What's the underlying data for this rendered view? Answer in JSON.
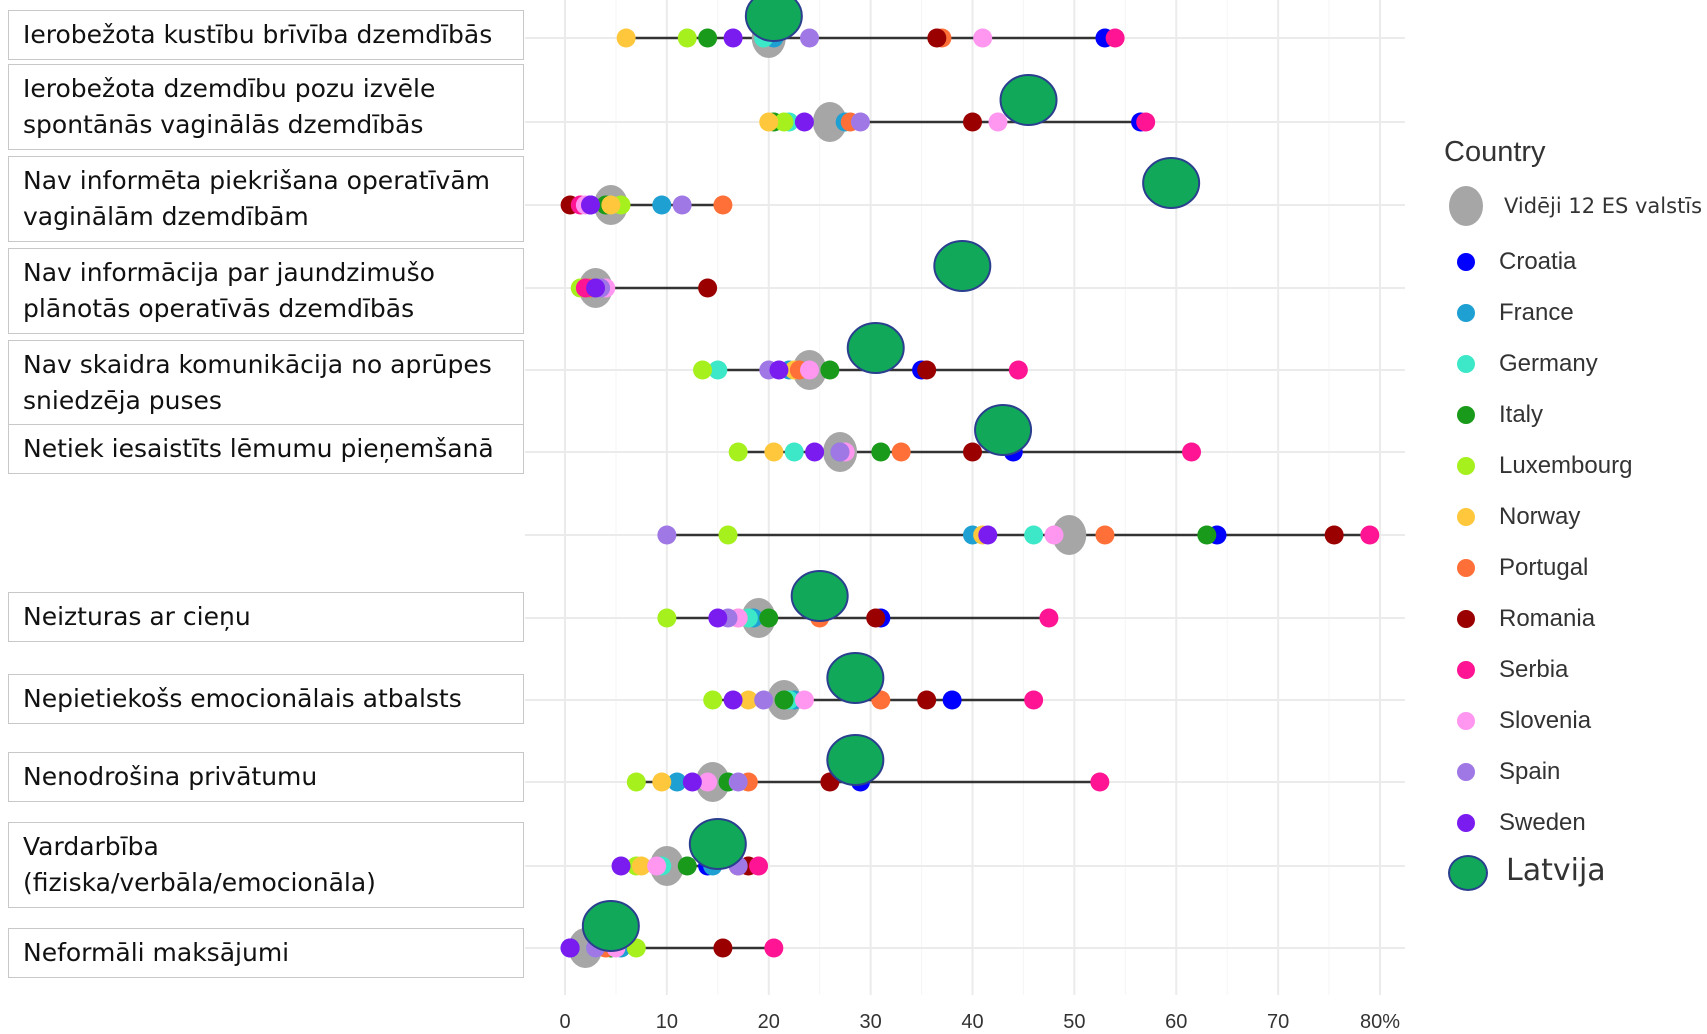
{
  "chart_data": {
    "type": "scatter",
    "xlabel": "",
    "ylabel": "",
    "xlim": [
      0,
      80
    ],
    "xticks": [
      "0",
      "10",
      "20",
      "30",
      "40",
      "50",
      "60",
      "70",
      "80%"
    ],
    "grid": true,
    "legend": {
      "title": "Country",
      "placement": "right",
      "entries": [
        {
          "name": "Vidēji 12 ES valstīs",
          "color": "#a6a6a6"
        },
        {
          "name": "Croatia",
          "color": "#0000ff"
        },
        {
          "name": "France",
          "color": "#1ea0d2"
        },
        {
          "name": "Germany",
          "color": "#3de8c8"
        },
        {
          "name": "Italy",
          "color": "#1a9a1a"
        },
        {
          "name": "Luxembourg",
          "color": "#a6f01e"
        },
        {
          "name": "Norway",
          "color": "#ffc83c"
        },
        {
          "name": "Portugal",
          "color": "#ff7038"
        },
        {
          "name": "Romania",
          "color": "#9b0000"
        },
        {
          "name": "Serbia",
          "color": "#ff1493"
        },
        {
          "name": "Slovenia",
          "color": "#ff96f0"
        },
        {
          "name": "Spain",
          "color": "#a078e6"
        },
        {
          "name": "Sweden",
          "color": "#7a1cf0"
        },
        {
          "name": "Latvija",
          "color": "#12a85a"
        }
      ]
    },
    "categories": [
      "Ierobežota kustību brīvība dzemdībās",
      "Ierobežota dzemdību pozu izvēle spontānās vaginālās dzemdībās",
      "Nav informēta piekrišana operatīvām vaginālām dzemdībām",
      "Nav informācija par jaundzimušo plānotās operatīvās dzemdībās",
      "Nav skaidra komunikācija no aprūpes sniedzēja puses",
      "Netiek iesaistīts lēmumu pieņemšanā",
      "",
      "Neizturas ar cieņu",
      "Nepietiekošs emocionālais atbalsts",
      "Nenodrošina privātumu",
      "Vardarbība (fiziska/verbāla/emocionāla)",
      "Neformāli maksājumi"
    ],
    "series": [
      {
        "name": "Vidēji 12 ES valstīs",
        "values": [
          20,
          26,
          4.5,
          3,
          24,
          27,
          49.5,
          19,
          21.5,
          14.5,
          10,
          2
        ]
      },
      {
        "name": "Croatia",
        "values": [
          53,
          56.5,
          2.5,
          2.5,
          35,
          44,
          64,
          31,
          38,
          29,
          14,
          0.5
        ]
      },
      {
        "name": "France",
        "values": [
          20.5,
          27.5,
          9.5,
          3,
          22,
          27,
          40,
          18.5,
          22.5,
          11,
          14.5,
          5.5
        ]
      },
      {
        "name": "Germany",
        "values": [
          19.5,
          22,
          4.5,
          2.5,
          15,
          22.5,
          46,
          18,
          22,
          16,
          9.5,
          3
        ]
      },
      {
        "name": "Italy",
        "values": [
          14,
          20.5,
          4,
          2,
          26,
          31,
          63,
          20,
          21.5,
          16,
          12,
          4.5
        ]
      },
      {
        "name": "Luxembourg",
        "values": [
          12,
          21.5,
          5.5,
          1.5,
          13.5,
          17,
          16,
          10,
          14.5,
          7,
          7,
          7
        ]
      },
      {
        "name": "Norway",
        "values": [
          6,
          20,
          4.5,
          2,
          22.5,
          20.5,
          41,
          17,
          18,
          9.5,
          7.5,
          4
        ]
      },
      {
        "name": "Portugal",
        "values": [
          37,
          28,
          15.5,
          2.5,
          23,
          33,
          53,
          25,
          31,
          18,
          17,
          4
        ]
      },
      {
        "name": "Romania",
        "values": [
          36.5,
          40,
          0.5,
          14,
          35.5,
          40,
          75.5,
          30.5,
          35.5,
          26,
          18,
          15.5
        ]
      },
      {
        "name": "Serbia",
        "values": [
          54,
          57,
          1.5,
          2,
          44.5,
          61.5,
          79,
          47.5,
          46,
          52.5,
          19,
          20.5
        ]
      },
      {
        "name": "Slovenia",
        "values": [
          41,
          42.5,
          2,
          4,
          24,
          27.5,
          48,
          17,
          23.5,
          14,
          9,
          5
        ]
      },
      {
        "name": "Spain",
        "values": [
          24,
          29,
          11.5,
          3.5,
          20,
          27,
          10,
          16,
          19.5,
          17,
          17,
          3
        ]
      },
      {
        "name": "Sweden",
        "values": [
          16.5,
          23.5,
          2.5,
          3,
          21,
          24.5,
          41.5,
          15,
          16.5,
          12.5,
          5.5,
          0.5
        ]
      },
      {
        "name": "Latvija",
        "values": [
          20.5,
          45.5,
          59.5,
          39,
          30.5,
          43,
          null,
          25,
          28.5,
          28.5,
          15,
          4.5
        ]
      }
    ]
  },
  "labels": {
    "r0": "Ierobežota kustību brīvība dzemdībās",
    "r1": "Ierobežota dzemdību pozu izvēle\nspontānās vaginālās dzemdībās",
    "r2": "Nav informēta piekrišana operatīvām\nvaginālām dzemdībām",
    "r3": "Nav informācija par jaundzimušo\nplānotās operatīvās dzemdībās",
    "r4": "Nav skaidra komunikācija no aprūpes\nsniedzēja puses",
    "r5": "Netiek iesaistīts lēmumu pieņemšanā",
    "r7": "Neizturas ar cieņu",
    "r8": "Nepietiekošs emocionālais atbalsts",
    "r9": "Nenodrošina privātumu",
    "r10": "Vardarbība\n(fiziska/verbāla/emocionāla)",
    "r11": "Neformāli maksājumi"
  }
}
